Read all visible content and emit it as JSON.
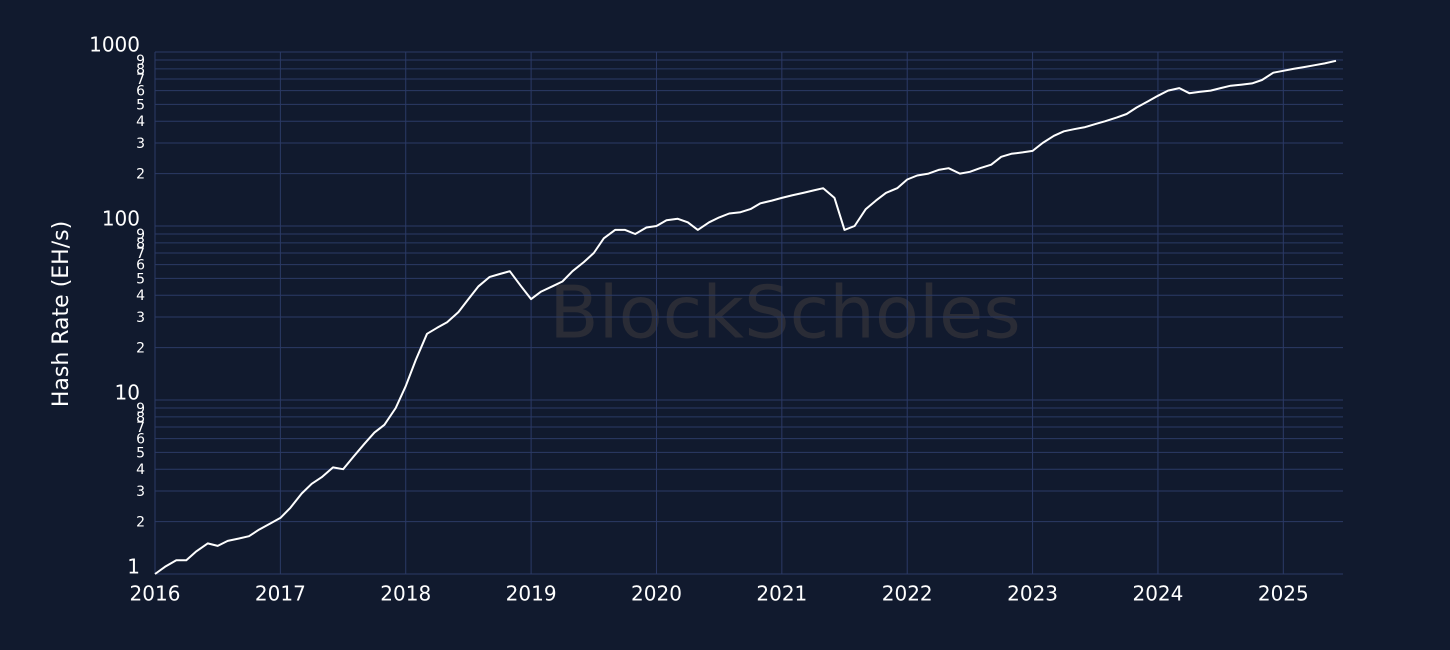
{
  "chart_data": {
    "type": "line",
    "y_label": "Hash Rate (EH/s)",
    "watermark": "BlockScholes",
    "color": "#ffffff",
    "log_y": true,
    "grid": true,
    "xlim": [
      2016,
      2025.5
    ],
    "xticks": [
      2016,
      2017,
      2018,
      2019,
      2020,
      2021,
      2022,
      2023,
      2024,
      2025
    ],
    "ylim": [
      1,
      1000
    ],
    "yticks": [
      1,
      {
        "value": 2,
        "label": "2"
      },
      {
        "value": 3,
        "label": "3"
      },
      {
        "value": 4,
        "label": "4"
      },
      {
        "value": 5,
        "label": "5"
      },
      {
        "value": 6,
        "label": "6"
      },
      {
        "value": 7,
        "label": "7"
      },
      {
        "value": 8,
        "label": "8"
      },
      {
        "value": 9,
        "label": "9"
      },
      10,
      {
        "value": 20,
        "label": "2"
      },
      {
        "value": 30,
        "label": "3"
      },
      {
        "value": 40,
        "label": "4"
      },
      {
        "value": 50,
        "label": "5"
      },
      {
        "value": 60,
        "label": "6"
      },
      {
        "value": 70,
        "label": "7"
      },
      {
        "value": 80,
        "label": "8"
      },
      {
        "value": 90,
        "label": "9"
      },
      100,
      {
        "value": 200,
        "label": "2"
      },
      {
        "value": 300,
        "label": "3"
      },
      {
        "value": 400,
        "label": "4"
      },
      {
        "value": 500,
        "label": "5"
      },
      {
        "value": 600,
        "label": "6"
      },
      {
        "value": 700,
        "label": "7"
      },
      {
        "value": 800,
        "label": "8"
      },
      {
        "value": 900,
        "label": "9"
      },
      1000
    ],
    "x": [
      2016.0,
      2016.08,
      2016.17,
      2016.25,
      2016.33,
      2016.42,
      2016.5,
      2016.58,
      2016.67,
      2016.75,
      2016.83,
      2016.92,
      2017.0,
      2017.08,
      2017.17,
      2017.25,
      2017.33,
      2017.42,
      2017.5,
      2017.58,
      2017.67,
      2017.75,
      2017.83,
      2017.92,
      2018.0,
      2018.08,
      2018.17,
      2018.25,
      2018.33,
      2018.42,
      2018.5,
      2018.58,
      2018.67,
      2018.75,
      2018.83,
      2018.92,
      2019.0,
      2019.08,
      2019.17,
      2019.25,
      2019.33,
      2019.42,
      2019.5,
      2019.58,
      2019.67,
      2019.75,
      2019.83,
      2019.92,
      2020.0,
      2020.08,
      2020.17,
      2020.25,
      2020.33,
      2020.42,
      2020.5,
      2020.58,
      2020.67,
      2020.75,
      2020.83,
      2020.92,
      2021.0,
      2021.08,
      2021.17,
      2021.25,
      2021.33,
      2021.42,
      2021.5,
      2021.58,
      2021.67,
      2021.75,
      2021.83,
      2021.92,
      2022.0,
      2022.08,
      2022.17,
      2022.25,
      2022.33,
      2022.42,
      2022.5,
      2022.58,
      2022.67,
      2022.75,
      2022.83,
      2022.92,
      2023.0,
      2023.08,
      2023.17,
      2023.25,
      2023.33,
      2023.42,
      2023.5,
      2023.58,
      2023.67,
      2023.75,
      2023.83,
      2023.92,
      2024.0,
      2024.08,
      2024.17,
      2024.25,
      2024.33,
      2024.42,
      2024.5,
      2024.58,
      2024.67,
      2024.75,
      2024.83,
      2024.92,
      2025.0,
      2025.08,
      2025.17,
      2025.25,
      2025.33,
      2025.42
    ],
    "values": [
      1.0,
      1.1,
      1.2,
      1.2,
      1.35,
      1.5,
      1.45,
      1.55,
      1.6,
      1.65,
      1.8,
      1.95,
      2.1,
      2.4,
      2.9,
      3.3,
      3.6,
      4.1,
      4.0,
      4.7,
      5.6,
      6.5,
      7.2,
      9.0,
      12,
      17,
      24,
      26,
      28,
      32,
      38,
      45,
      51,
      53,
      55,
      45,
      38,
      42,
      45,
      48,
      55,
      62,
      70,
      85,
      95,
      95,
      90,
      98,
      100,
      108,
      110,
      105,
      95,
      105,
      112,
      118,
      120,
      125,
      135,
      140,
      145,
      150,
      155,
      160,
      165,
      145,
      95,
      100,
      125,
      140,
      155,
      165,
      185,
      195,
      200,
      210,
      215,
      200,
      205,
      215,
      225,
      250,
      260,
      265,
      270,
      300,
      330,
      350,
      360,
      370,
      385,
      400,
      420,
      440,
      480,
      520,
      560,
      600,
      620,
      580,
      590,
      600,
      620,
      640,
      650,
      660,
      690,
      760,
      780,
      800,
      820,
      840,
      860,
      890
    ]
  }
}
